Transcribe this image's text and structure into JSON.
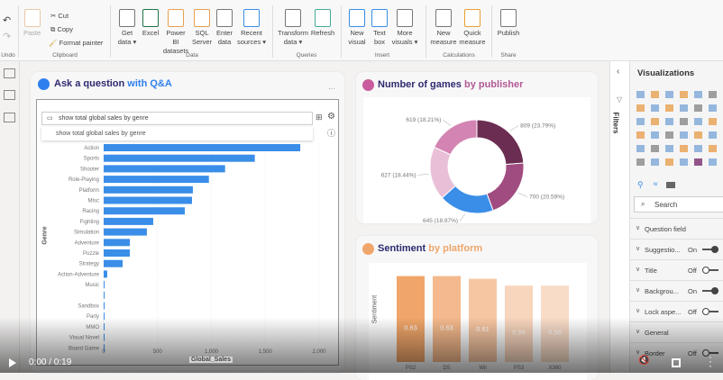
{
  "ribbon": {
    "undo_group": "Undo",
    "clipboard": {
      "paste": "Paste",
      "cut": "Cut",
      "copy": "Copy",
      "format_painter": "Format painter",
      "group": "Clipboard"
    },
    "data": {
      "get_data": "Get data",
      "excel": "Excel",
      "powerbi": "Power BI datasets",
      "sql": "SQL Server",
      "enter": "Enter data",
      "recent": "Recent sources",
      "group": "Data"
    },
    "queries": {
      "transform": "Transform data",
      "refresh": "Refresh",
      "group": "Queries"
    },
    "insert": {
      "new_visual": "New visual",
      "text_box": "Text box",
      "more_visuals": "More visuals",
      "group": "Insert"
    },
    "calculations": {
      "new_measure": "New measure",
      "quick_measure": "Quick measure",
      "group": "Calculations"
    },
    "share": {
      "publish": "Publish",
      "group": "Share"
    }
  },
  "qa": {
    "title_a": "Ask a question ",
    "title_b": "with Q&A",
    "input_value": "show total global sales by genre",
    "suggestion": "show total global sales by genre",
    "accent": "#2f80ed"
  },
  "chart_data": [
    {
      "type": "bar",
      "orientation": "horizontal",
      "title": "",
      "xlabel": "Global_Sales",
      "ylabel": "Genre",
      "xlim": [
        0,
        2000
      ],
      "xticks": [
        "0",
        "500",
        "1,000",
        "1,500",
        "2,000"
      ],
      "categories": [
        "Action",
        "Sports",
        "Shooter",
        "Role-Playing",
        "Platform",
        "Misc",
        "Racing",
        "Fighting",
        "Simulation",
        "Adventure",
        "Puzzle",
        "Strategy",
        "Action-Adventure",
        "Music",
        "",
        "Sandbox",
        "Party",
        "MMO",
        "Visual Novel",
        "Board Game"
      ],
      "values": [
        1825,
        1403,
        1127,
        977,
        828,
        820,
        753,
        460,
        401,
        243,
        243,
        176,
        33,
        2,
        2,
        1,
        1,
        1,
        1,
        1
      ],
      "color": "#3a8ee8"
    },
    {
      "type": "pie",
      "donut": true,
      "title_a": "Number of games ",
      "title_b": "by publisher",
      "values": [
        809,
        700,
        645,
        627,
        619
      ],
      "labels": [
        "809 (23.79%)",
        "700 (20.59%)",
        "645 (18.97%)",
        "627 (18.44%)",
        "619 (18.21%)"
      ],
      "colors": [
        "#6b2d52",
        "#a04c80",
        "#3a8ee8",
        "#e9bfd7",
        "#d384b3"
      ]
    },
    {
      "type": "bar",
      "title_a": "Sentiment ",
      "title_b": "by platform",
      "ylabel": "Sentiment",
      "ylim": [
        0,
        0.7
      ],
      "categories": [
        "PS2",
        "DS",
        "Wii",
        "PS3",
        "X360"
      ],
      "values": [
        0.63,
        0.63,
        0.61,
        0.56,
        0.56
      ],
      "labels": [
        "0.63",
        "0.63",
        "0.61",
        "0.56",
        "0.56"
      ],
      "colors": [
        "#f0a66a",
        "#f4b98c",
        "#f6c6a2",
        "#f8d5bd",
        "#f9dcc8"
      ]
    }
  ],
  "filters": {
    "label": "Filters"
  },
  "viz": {
    "title": "Visualizations",
    "search_placeholder": "Search",
    "props": [
      {
        "name": "Question field",
        "state": ""
      },
      {
        "name": "Suggestio...",
        "state": "On"
      },
      {
        "name": "Title",
        "state": "Off"
      },
      {
        "name": "Backgrou...",
        "state": "On"
      },
      {
        "name": "Lock aspe...",
        "state": "Off"
      },
      {
        "name": "General",
        "state": ""
      },
      {
        "name": "Border",
        "state": "Off"
      }
    ]
  },
  "video": {
    "time": "0:00 / 0:19"
  }
}
